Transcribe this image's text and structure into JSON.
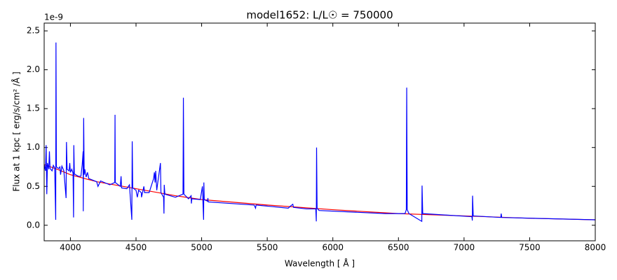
{
  "chart_data": {
    "type": "line",
    "title": "model1652: L/L☉ = 750000",
    "x_label": "Wavelength [ Å ]",
    "y_label": "Flux at 1 kpc [ erg/s/cm² /Å ]",
    "y_offset_label": "1e-9",
    "xlim": [
      3800,
      8000
    ],
    "xticks": [
      4000,
      4500,
      5000,
      5500,
      6000,
      6500,
      7000,
      7500,
      8000
    ],
    "ylim": [
      -0.2,
      2.6
    ],
    "yticks": [
      {
        "value": 0,
        "label": "0.0"
      },
      0.5,
      {
        "value": 1,
        "label": "1.0"
      },
      1.5,
      {
        "value": 2,
        "label": "2.0"
      },
      2.5
    ],
    "series": [
      {
        "color": "#ff0000",
        "x": [
          3800,
          3900,
          4000,
          4200,
          4500,
          4800,
          5000,
          5500,
          6000,
          6500,
          7000,
          7500,
          8000
        ],
        "values": [
          0.78,
          0.72,
          0.65,
          0.56,
          0.47,
          0.38,
          0.33,
          0.26,
          0.2,
          0.15,
          0.12,
          0.09,
          0.07
        ]
      },
      {
        "color": "#0000ff",
        "x": [
          3800,
          3810,
          3815,
          3820,
          3825,
          3835,
          3840,
          3845,
          3860,
          3870,
          3880,
          3888,
          3890,
          3893,
          3910,
          3920,
          3925,
          3935,
          3950,
          3967,
          3970,
          3975,
          3990,
          3995,
          4000,
          4010,
          4020,
          4024,
          4026,
          4030,
          4060,
          4080,
          4090,
          4097,
          4098,
          4101,
          4105,
          4110,
          4120,
          4130,
          4140,
          4200,
          4210,
          4230,
          4300,
          4338,
          4340,
          4342,
          4380,
          4386,
          4390,
          4430,
          4450,
          4468,
          4471,
          4475,
          4500,
          4510,
          4520,
          4540,
          4542,
          4560,
          4565,
          4600,
          4634,
          4640,
          4645,
          4650,
          4658,
          4686,
          4690,
          4710,
          4713,
          4715,
          4720,
          4800,
          4858,
          4861,
          4865,
          4900,
          4920,
          4922,
          4925,
          4990,
          5006,
          5010,
          5015,
          5017,
          5020,
          5045,
          5048,
          5050,
          5400,
          5411,
          5415,
          5660,
          5680,
          5695,
          5700,
          5800,
          5870,
          5874,
          5876,
          5880,
          5895,
          6400,
          6550,
          6560,
          6563,
          6567,
          6580,
          6678,
          6680,
          6685,
          7060,
          7063,
          7065,
          7070,
          7280,
          7283,
          7287,
          8000
        ],
        "values": [
          0.78,
          0.7,
          1.03,
          0.4,
          0.8,
          0.72,
          0.95,
          0.73,
          0.7,
          0.77,
          0.74,
          0.07,
          2.35,
          0.75,
          0.73,
          0.75,
          0.65,
          0.76,
          0.7,
          0.35,
          1.07,
          0.72,
          0.7,
          0.8,
          0.68,
          0.72,
          0.67,
          0.1,
          1.03,
          0.66,
          0.63,
          0.63,
          0.78,
          0.95,
          0.18,
          1.38,
          0.65,
          0.72,
          0.62,
          0.68,
          0.6,
          0.56,
          0.5,
          0.57,
          0.52,
          0.55,
          1.42,
          0.55,
          0.5,
          0.63,
          0.48,
          0.47,
          0.52,
          0.07,
          1.08,
          0.48,
          0.45,
          0.36,
          0.45,
          0.42,
          0.36,
          0.5,
          0.42,
          0.42,
          0.6,
          0.68,
          0.55,
          0.7,
          0.45,
          0.8,
          0.42,
          0.36,
          0.15,
          0.52,
          0.4,
          0.36,
          0.4,
          1.64,
          0.4,
          0.34,
          0.38,
          0.28,
          0.34,
          0.33,
          0.5,
          0.3,
          0.07,
          0.55,
          0.33,
          0.31,
          0.35,
          0.3,
          0.26,
          0.22,
          0.26,
          0.22,
          0.25,
          0.27,
          0.23,
          0.21,
          0.21,
          0.05,
          1.0,
          0.22,
          0.19,
          0.15,
          0.15,
          0.2,
          1.77,
          0.2,
          0.15,
          0.05,
          0.51,
          0.15,
          0.11,
          0.06,
          0.38,
          0.12,
          0.1,
          0.15,
          0.1,
          0.07
        ]
      }
    ]
  }
}
